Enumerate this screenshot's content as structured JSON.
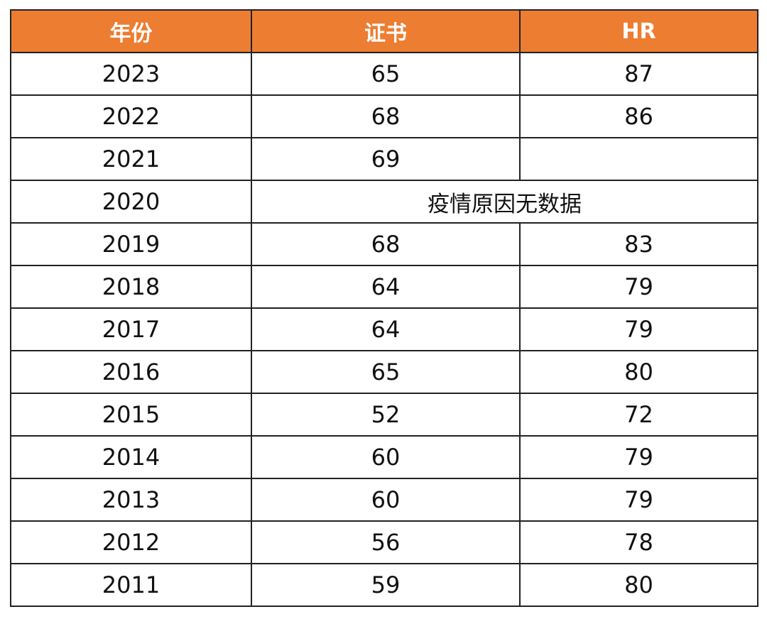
{
  "table": {
    "header_color": "#ED7D31",
    "columns": [
      "年份",
      "证书",
      "HR"
    ],
    "rows": [
      {
        "year": "2023",
        "cert": "65",
        "hr": "87"
      },
      {
        "year": "2022",
        "cert": "68",
        "hr": "86"
      },
      {
        "year": "2021",
        "cert": "69",
        "hr": ""
      },
      {
        "year": "2020",
        "note": "疫情原因无数据"
      },
      {
        "year": "2019",
        "cert": "68",
        "hr": "83"
      },
      {
        "year": "2018",
        "cert": "64",
        "hr": "79"
      },
      {
        "year": "2017",
        "cert": "64",
        "hr": "79"
      },
      {
        "year": "2016",
        "cert": "65",
        "hr": "80"
      },
      {
        "year": "2015",
        "cert": "52",
        "hr": "72"
      },
      {
        "year": "2014",
        "cert": "60",
        "hr": "79"
      },
      {
        "year": "2013",
        "cert": "60",
        "hr": "79"
      },
      {
        "year": "2012",
        "cert": "56",
        "hr": "78"
      },
      {
        "year": "2011",
        "cert": "59",
        "hr": "80"
      }
    ]
  }
}
